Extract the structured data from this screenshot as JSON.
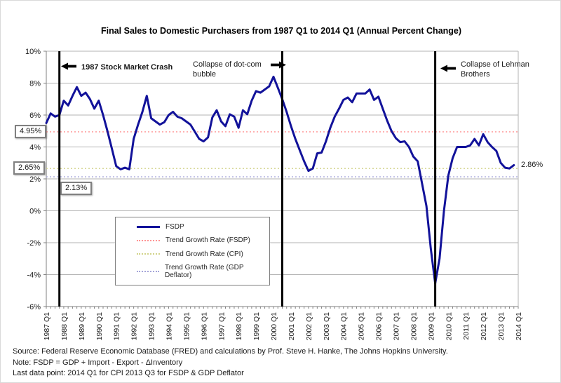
{
  "annotations": {
    "crash": {
      "text": "1987 Stock Market Crash",
      "arrow": "left"
    },
    "dotcom": {
      "text": "Collapse of dot-com bubble",
      "arrow": "right"
    },
    "lehman": {
      "text": "Collapse of Lehman Brothers",
      "arrow": "left"
    }
  },
  "trend_labels": {
    "fsdp": "4.95%",
    "cpi": "2.65%",
    "gdp_deflator": "2.13%"
  },
  "end_label": "2.86%",
  "legend": {
    "items": [
      {
        "label": "FSDP",
        "color": "#12129a",
        "style": "solid"
      },
      {
        "label": "Trend Growth Rate (FSDP)",
        "color": "#ff9494",
        "style": "dotted"
      },
      {
        "label": "Trend Growth Rate (CPI)",
        "color": "#d2d389",
        "style": "dotted"
      },
      {
        "label": "Trend Growth Rate (GDP Deflator)",
        "color": "#a5a5d9",
        "style": "dotted"
      }
    ]
  },
  "footer": {
    "source": "Source: Federal Reserve Economic Database (FRED) and calculations by Prof. Steve H. Hanke, The Johns Hopkins University.",
    "note": "Note: FSDP = GDP + Import - Export - ΔInventory",
    "last_data": "Last data point: 2014 Q1 for CPI 2013 Q3 for FSDP & GDP Deflator"
  },
  "chart_data": {
    "type": "line",
    "title": "Final Sales to Domestic Purchasers from 1987 Q1 to 2014 Q1 (Annual Percent Change)",
    "ylim": [
      -6,
      10
    ],
    "y_tick_labels": [
      "10%",
      "8%",
      "6%",
      "4%",
      "2%",
      "0%",
      "-2%",
      "-4%",
      "-6%"
    ],
    "x_tick_labels": [
      "1987 Q1",
      "1988 Q1",
      "1989 Q1",
      "1990 Q1",
      "1991 Q1",
      "1992 Q1",
      "1993 Q1",
      "1994 Q1",
      "1995 Q1",
      "1996 Q1",
      "1997 Q1",
      "1998 Q1",
      "1999 Q1",
      "2000 Q1",
      "2001 Q1",
      "2002 Q1",
      "2003 Q1",
      "2004 Q1",
      "2005 Q1",
      "2006 Q1",
      "2007 Q1",
      "2008 Q1",
      "2009 Q1",
      "2010 Q1",
      "2011 Q1",
      "2012 Q1",
      "2013 Q1",
      "2014 Q1"
    ],
    "x_start": "1987 Q1",
    "x_end": "2014 Q1",
    "grid": "horizontal",
    "legend_position": "inside-lower-left",
    "series": [
      {
        "name": "FSDP",
        "type": "line",
        "color": "#12129a",
        "frequency": "quarterly",
        "start": "1987 Q1",
        "values": [
          5.5,
          6.1,
          5.9,
          6.0,
          6.9,
          6.6,
          7.2,
          7.75,
          7.2,
          7.4,
          7.0,
          6.4,
          6.9,
          6.0,
          5.0,
          3.9,
          2.8,
          2.6,
          2.7,
          2.6,
          4.5,
          5.4,
          6.2,
          7.2,
          5.8,
          5.6,
          5.4,
          5.55,
          6.0,
          6.2,
          5.9,
          5.8,
          5.6,
          5.4,
          4.95,
          4.5,
          4.35,
          4.6,
          5.85,
          6.3,
          5.6,
          5.3,
          6.05,
          5.9,
          5.2,
          6.3,
          6.05,
          6.9,
          7.5,
          7.4,
          7.6,
          7.8,
          8.4,
          7.7,
          7.0,
          6.2,
          5.3,
          4.5,
          3.8,
          3.1,
          2.5,
          2.65,
          3.6,
          3.65,
          4.35,
          5.2,
          5.9,
          6.4,
          6.95,
          7.1,
          6.8,
          7.35,
          7.35,
          7.35,
          7.6,
          6.95,
          7.15,
          6.4,
          5.65,
          5.0,
          4.55,
          4.3,
          4.35,
          4.0,
          3.4,
          3.1,
          1.7,
          0.3,
          -2.4,
          -4.55,
          -3.0,
          0.0,
          2.2,
          3.3,
          4.0,
          4.0,
          4.0,
          4.1,
          4.5,
          4.1,
          4.8,
          4.3,
          4.0,
          3.75,
          3.0,
          2.7,
          2.65,
          2.86
        ]
      },
      {
        "name": "Trend Growth Rate (FSDP)",
        "type": "hline",
        "value": 4.95,
        "color": "#ff9494"
      },
      {
        "name": "Trend Growth Rate (CPI)",
        "type": "hline",
        "value": 2.65,
        "color": "#d2d389"
      },
      {
        "name": "Trend Growth Rate (GDP Deflator)",
        "type": "hline",
        "value": 2.13,
        "color": "#a5a5d9"
      }
    ],
    "event_lines": [
      {
        "label": "1987 Stock Market Crash",
        "quarter": "1987 Q4"
      },
      {
        "label": "Collapse of dot-com bubble",
        "quarter": "2000 Q3"
      },
      {
        "label": "Collapse of Lehman Brothers",
        "quarter": "2009 Q2"
      }
    ],
    "last_point_label": "2.86%"
  }
}
